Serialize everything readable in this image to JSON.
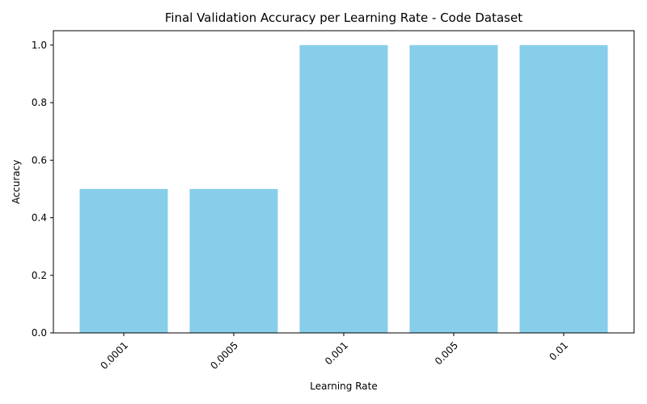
{
  "chart_data": {
    "type": "bar",
    "title": "Final Validation Accuracy per Learning Rate - Code Dataset",
    "xlabel": "Learning Rate",
    "ylabel": "Accuracy",
    "categories": [
      "0.0001",
      "0.0005",
      "0.001",
      "0.005",
      "0.01"
    ],
    "values": [
      0.5,
      0.5,
      1.0,
      1.0,
      1.0
    ],
    "ylim": [
      0,
      1.05
    ],
    "yticks": [
      "0.0",
      "0.2",
      "0.4",
      "0.6",
      "0.8",
      "1.0"
    ],
    "bar_color": "#87ceeb",
    "grid": false,
    "legend": "none"
  }
}
